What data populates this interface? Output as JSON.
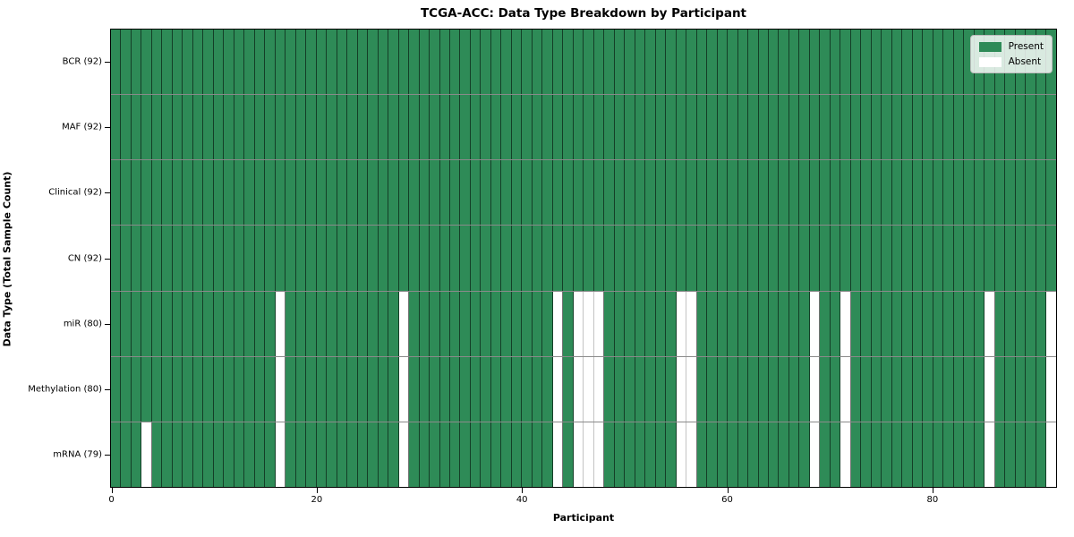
{
  "chart_data": {
    "type": "heatmap",
    "title": "TCGA-ACC: Data Type Breakdown by Participant",
    "xlabel": "Participant",
    "ylabel": "Data Type (Total Sample Count)",
    "n_participants": 92,
    "x_ticks": [
      0,
      20,
      40,
      60,
      80
    ],
    "x_range": [
      0,
      92
    ],
    "grid": false,
    "legend_position": "upper right",
    "colors": {
      "present": "#2e8b57",
      "absent": "#ffffff"
    },
    "legend": [
      {
        "name": "present",
        "label": "Present",
        "color": "#2e8b57"
      },
      {
        "name": "absent",
        "label": "Absent",
        "color": "#ffffff"
      }
    ],
    "rows": [
      {
        "label": "BCR (92)",
        "data_type": "BCR",
        "present_count": 92,
        "absent_participants": []
      },
      {
        "label": "MAF (92)",
        "data_type": "MAF",
        "present_count": 92,
        "absent_participants": []
      },
      {
        "label": "Clinical (92)",
        "data_type": "Clinical",
        "present_count": 92,
        "absent_participants": []
      },
      {
        "label": "CN (92)",
        "data_type": "CN",
        "present_count": 92,
        "absent_participants": []
      },
      {
        "label": "miR (80)",
        "data_type": "miR",
        "present_count": 80,
        "absent_participants": [
          16,
          28,
          43,
          45,
          46,
          47,
          55,
          56,
          68,
          71,
          85,
          91
        ]
      },
      {
        "label": "Methylation (80)",
        "data_type": "Methylation",
        "present_count": 80,
        "absent_participants": [
          16,
          28,
          43,
          45,
          46,
          47,
          55,
          56,
          68,
          71,
          85,
          91
        ]
      },
      {
        "label": "mRNA (79)",
        "data_type": "mRNA",
        "present_count": 79,
        "absent_participants": [
          3,
          16,
          28,
          43,
          45,
          46,
          47,
          55,
          56,
          68,
          71,
          85,
          91
        ]
      }
    ]
  }
}
